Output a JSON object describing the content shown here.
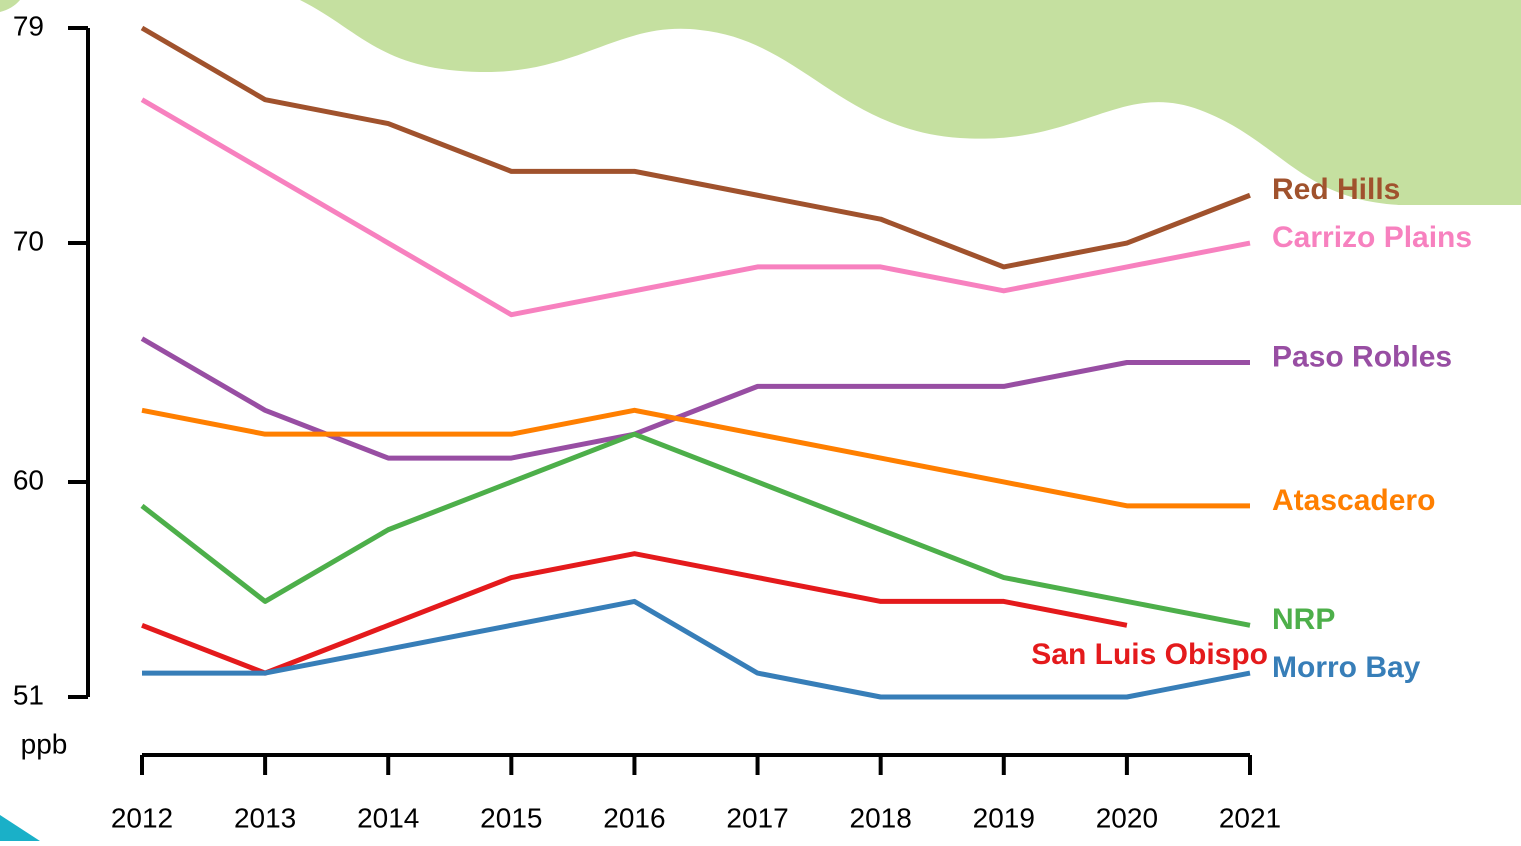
{
  "chart_data": {
    "type": "line",
    "categories": [
      "2012",
      "2013",
      "2014",
      "2015",
      "2016",
      "2017",
      "2018",
      "2019",
      "2020",
      "2021"
    ],
    "y_label": "ppb",
    "ylim": [
      51,
      79
    ],
    "yticks": [
      51,
      60,
      70,
      79
    ],
    "series": [
      {
        "name": "Red Hills",
        "color": "#a0522d",
        "values": [
          79,
          76,
          75,
          73,
          73,
          72,
          71,
          69,
          70,
          72
        ]
      },
      {
        "name": "Carrizo Plains",
        "color": "#f781bf",
        "values": [
          76,
          73,
          70,
          67,
          68,
          69,
          69,
          68,
          69,
          70
        ]
      },
      {
        "name": "Paso Robles",
        "color": "#984ea3",
        "values": [
          66,
          63,
          61,
          61,
          62,
          64,
          64,
          64,
          65,
          65
        ]
      },
      {
        "name": "Atascadero",
        "color": "#ff7f00",
        "values": [
          63,
          62,
          62,
          62,
          63,
          62,
          61,
          60,
          59,
          59
        ]
      },
      {
        "name": "NRP",
        "color": "#4daf4a",
        "values": [
          59,
          55,
          58,
          60,
          62,
          60,
          58,
          56,
          55,
          54
        ]
      },
      {
        "name": "San Luis Obispo",
        "color": "#e41a1c",
        "values": [
          54,
          52,
          54,
          56,
          57,
          56,
          55,
          55,
          54,
          null
        ]
      },
      {
        "name": "Morro Bay",
        "color": "#377eb8",
        "values": [
          52,
          52,
          53,
          54,
          55,
          52,
          51,
          51,
          51,
          52
        ]
      }
    ]
  }
}
